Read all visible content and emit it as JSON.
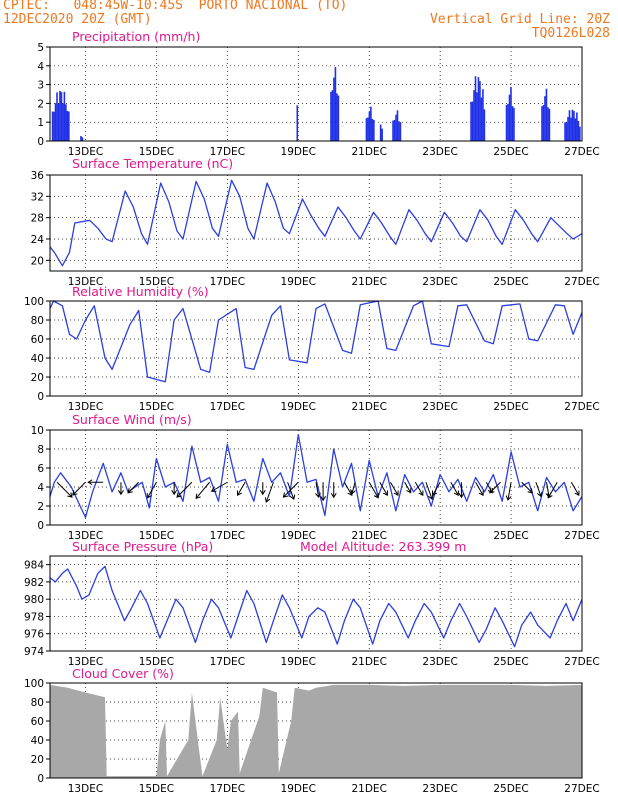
{
  "header": {
    "line1_left": "CPTEC:   048:45W-10:45S  PORTO NACIONAL (TO)",
    "line2_left": "12DEC2020 20Z (GMT)",
    "line2_right": "Vertical Grid Line: 20Z",
    "line3_right": "TQ0126L028"
  },
  "colors": {
    "header": "#f07820",
    "title": "#e0198e",
    "line": "#2a3fe0",
    "bar": "#1f30e6",
    "cloud": "#a8a8a8",
    "arrow": "#000000"
  },
  "chart_data": [
    {
      "type": "bar",
      "title": "Precipitation (mm/h)",
      "xlim": [
        0,
        15
      ],
      "ylim": [
        0,
        5
      ],
      "yticks": [
        0,
        1,
        2,
        3,
        4,
        5
      ],
      "xticks": [
        {
          "day": 1,
          "label": "13DEC"
        },
        {
          "day": 3,
          "label": "15DEC"
        },
        {
          "day": 5,
          "label": "17DEC"
        },
        {
          "day": 7,
          "label": "19DEC"
        },
        {
          "day": 9,
          "label": "21DEC"
        },
        {
          "day": 11,
          "label": "23DEC"
        },
        {
          "day": 13,
          "label": "25DEC"
        },
        {
          "day": 15,
          "label": "27DEC"
        }
      ],
      "bursts": [
        {
          "start": 0.05,
          "end": 0.55,
          "peak": 2.9
        },
        {
          "start": 0.85,
          "end": 0.95,
          "peak": 0.3
        },
        {
          "start": 6.95,
          "end": 7.0,
          "peak": 1.9
        },
        {
          "start": 7.9,
          "end": 8.15,
          "peak": 4.1
        },
        {
          "start": 8.9,
          "end": 9.15,
          "peak": 1.9
        },
        {
          "start": 9.3,
          "end": 9.4,
          "peak": 1.0
        },
        {
          "start": 9.65,
          "end": 9.9,
          "peak": 1.7
        },
        {
          "start": 11.85,
          "end": 12.25,
          "peak": 3.7
        },
        {
          "start": 12.85,
          "end": 13.1,
          "peak": 3.0
        },
        {
          "start": 13.85,
          "end": 14.1,
          "peak": 2.9
        },
        {
          "start": 14.5,
          "end": 14.95,
          "peak": 1.8
        }
      ]
    },
    {
      "type": "line",
      "title": "Surface Temperature (nC)",
      "xlim": [
        0,
        15
      ],
      "ylim": [
        18,
        36
      ],
      "yticks": [
        20,
        24,
        28,
        32,
        36
      ],
      "x": [
        0,
        0.12,
        0.35,
        0.55,
        0.7,
        1.12,
        1.35,
        1.58,
        1.75,
        2.12,
        2.35,
        2.58,
        2.75,
        3.12,
        3.35,
        3.58,
        3.75,
        4.12,
        4.35,
        4.58,
        4.75,
        5.12,
        5.35,
        5.58,
        5.75,
        6.12,
        6.35,
        6.58,
        6.75,
        7.12,
        7.35,
        7.58,
        7.75,
        8.12,
        8.35,
        8.58,
        8.75,
        9.12,
        9.35,
        9.58,
        9.75,
        10.12,
        10.35,
        10.58,
        10.75,
        11.12,
        11.35,
        11.58,
        11.75,
        12.12,
        12.35,
        12.58,
        12.75,
        13.12,
        13.35,
        13.58,
        13.75,
        14.12,
        14.35,
        14.58,
        14.75,
        15
      ],
      "values": [
        22.5,
        21.5,
        19.0,
        21.5,
        27.0,
        27.5,
        26.0,
        24.0,
        23.5,
        33.0,
        30.0,
        25.0,
        23.0,
        34.5,
        31.0,
        25.5,
        24.0,
        34.8,
        31.5,
        26.0,
        24.5,
        35.0,
        32.0,
        26.0,
        24.0,
        34.5,
        31.0,
        26.0,
        25.0,
        31.5,
        28.5,
        26.0,
        24.5,
        30.0,
        28.0,
        25.5,
        24.0,
        29.0,
        27.0,
        24.5,
        23.0,
        29.5,
        27.5,
        25.0,
        23.5,
        29.0,
        27.0,
        24.5,
        23.5,
        29.5,
        27.5,
        24.5,
        23.0,
        29.5,
        27.5,
        25.0,
        23.5,
        28.0,
        26.5,
        25.0,
        24.0,
        25.0
      ]
    },
    {
      "type": "line",
      "title": "Relative Humidity (%)",
      "xlim": [
        0,
        15
      ],
      "ylim": [
        0,
        100
      ],
      "yticks": [
        0,
        20,
        40,
        60,
        80,
        100
      ],
      "x": [
        0,
        0.1,
        0.35,
        0.55,
        0.75,
        1.0,
        1.25,
        1.55,
        1.75,
        2.25,
        2.5,
        2.75,
        3.25,
        3.5,
        3.75,
        4.25,
        4.5,
        4.75,
        5.25,
        5.5,
        5.75,
        6.25,
        6.5,
        6.75,
        7.25,
        7.5,
        7.75,
        8.25,
        8.5,
        8.75,
        9.25,
        9.5,
        9.75,
        10.25,
        10.5,
        10.75,
        11.25,
        11.5,
        11.75,
        12.25,
        12.5,
        12.75,
        13.25,
        13.5,
        13.75,
        14.25,
        14.5,
        14.75,
        15
      ],
      "values": [
        92,
        100,
        95,
        65,
        60,
        80,
        95,
        40,
        28,
        75,
        90,
        20,
        15,
        80,
        92,
        28,
        25,
        80,
        92,
        30,
        28,
        85,
        95,
        38,
        35,
        92,
        97,
        48,
        45,
        96,
        100,
        50,
        48,
        95,
        100,
        55,
        52,
        95,
        96,
        58,
        55,
        95,
        97,
        60,
        58,
        96,
        95,
        65,
        88
      ]
    },
    {
      "type": "line",
      "title": "Surface Wind (m/s)",
      "xlim": [
        0,
        15
      ],
      "ylim": [
        0,
        10
      ],
      "yticks": [
        0,
        2,
        4,
        6,
        8,
        10
      ],
      "x": [
        0,
        0.12,
        0.3,
        0.6,
        0.85,
        1.0,
        1.2,
        1.5,
        1.75,
        2.0,
        2.2,
        2.6,
        2.8,
        3.0,
        3.25,
        3.5,
        3.75,
        4.0,
        4.25,
        4.5,
        4.75,
        5.0,
        5.25,
        5.5,
        5.75,
        6.0,
        6.25,
        6.5,
        6.75,
        7.0,
        7.25,
        7.5,
        7.75,
        8.0,
        8.25,
        8.5,
        8.75,
        9.0,
        9.25,
        9.5,
        9.75,
        10.0,
        10.25,
        10.5,
        10.75,
        11.0,
        11.25,
        11.5,
        11.75,
        12.0,
        12.25,
        12.5,
        12.75,
        13.0,
        13.25,
        13.5,
        13.75,
        14.0,
        14.25,
        14.5,
        14.75,
        15
      ],
      "values": [
        3.0,
        4.5,
        5.5,
        4.0,
        2.0,
        0.8,
        3.5,
        6.5,
        3.5,
        5.5,
        3.5,
        4.5,
        1.8,
        7.0,
        4.0,
        4.5,
        2.5,
        8.3,
        4.5,
        5.0,
        2.5,
        8.5,
        4.5,
        4.8,
        2.5,
        7.0,
        4.5,
        5.5,
        3.0,
        9.5,
        4.5,
        4.8,
        1.0,
        8.0,
        4.0,
        6.5,
        1.5,
        6.8,
        3.0,
        5.5,
        1.5,
        5.3,
        3.5,
        4.5,
        2.0,
        5.3,
        3.5,
        4.8,
        2.5,
        5.0,
        3.5,
        5.3,
        2.5,
        7.7,
        4.0,
        4.5,
        1.5,
        5.0,
        3.5,
        4.5,
        1.5,
        3.0
      ],
      "arrows_note": "wind direction arrows",
      "arrows": [
        [
          0.2,
          135,
          5
        ],
        [
          1.0,
          45,
          4
        ],
        [
          1.5,
          0,
          3
        ],
        [
          2.0,
          90,
          2
        ],
        [
          2.5,
          45,
          3
        ],
        [
          3.0,
          60,
          4
        ],
        [
          3.5,
          90,
          2
        ],
        [
          4.0,
          45,
          5
        ],
        [
          4.5,
          50,
          5
        ],
        [
          5.0,
          30,
          4
        ],
        [
          5.5,
          60,
          3
        ],
        [
          6.0,
          90,
          2
        ],
        [
          6.3,
          70,
          5
        ],
        [
          6.7,
          110,
          4
        ],
        [
          7.0,
          45,
          5
        ],
        [
          7.5,
          100,
          3
        ],
        [
          7.7,
          90,
          4
        ],
        [
          8.0,
          90,
          3
        ],
        [
          8.3,
          120,
          3
        ],
        [
          8.6,
          75,
          2
        ],
        [
          9.0,
          120,
          4
        ],
        [
          9.3,
          120,
          3
        ],
        [
          9.6,
          120,
          3
        ],
        [
          10.0,
          120,
          2
        ],
        [
          10.3,
          120,
          3
        ],
        [
          10.6,
          110,
          4
        ],
        [
          11.0,
          60,
          3
        ],
        [
          11.3,
          120,
          3
        ],
        [
          11.6,
          90,
          3
        ],
        [
          12.0,
          120,
          3
        ],
        [
          12.3,
          120,
          2
        ],
        [
          12.7,
          45,
          3
        ],
        [
          13.0,
          80,
          4
        ],
        [
          13.3,
          135,
          3
        ],
        [
          13.7,
          110,
          3
        ],
        [
          14.0,
          100,
          3
        ],
        [
          14.3,
          60,
          4
        ],
        [
          14.7,
          120,
          3
        ]
      ]
    },
    {
      "type": "line",
      "title": "Surface Pressure (hPa)",
      "annotation": "Model Altitude: 263.399 m",
      "xlim": [
        0,
        15
      ],
      "ylim": [
        974,
        985
      ],
      "yticks": [
        974,
        976,
        978,
        980,
        982,
        984
      ],
      "x": [
        0,
        0.15,
        0.35,
        0.5,
        0.75,
        0.9,
        1.1,
        1.35,
        1.55,
        1.75,
        2.1,
        2.3,
        2.55,
        2.75,
        3.1,
        3.3,
        3.55,
        3.75,
        4.1,
        4.3,
        4.55,
        4.75,
        5.1,
        5.3,
        5.55,
        5.75,
        6.1,
        6.3,
        6.55,
        6.75,
        7.1,
        7.3,
        7.55,
        7.75,
        8.1,
        8.3,
        8.55,
        8.75,
        9.1,
        9.3,
        9.55,
        9.75,
        10.1,
        10.3,
        10.55,
        10.75,
        11.1,
        11.3,
        11.55,
        11.75,
        12.1,
        12.3,
        12.55,
        12.75,
        13.1,
        13.3,
        13.55,
        13.75,
        14.1,
        14.3,
        14.55,
        14.75,
        15
      ],
      "values": [
        982.5,
        982.0,
        983.0,
        983.5,
        981.5,
        980.0,
        980.5,
        983.0,
        983.8,
        981.0,
        977.5,
        979.0,
        981.0,
        979.5,
        975.5,
        977.5,
        980.0,
        979.0,
        975.0,
        977.5,
        980.0,
        979.0,
        975.5,
        978.0,
        981.0,
        979.5,
        975.0,
        977.5,
        980.5,
        979.0,
        975.5,
        978.0,
        979.0,
        978.5,
        974.8,
        977.5,
        980.0,
        979.0,
        974.8,
        977.5,
        979.5,
        978.5,
        975.5,
        977.5,
        979.5,
        978.5,
        975.5,
        977.5,
        979.5,
        978.0,
        975.0,
        976.5,
        979.0,
        977.5,
        974.5,
        977.0,
        978.5,
        977.0,
        975.5,
        977.5,
        979.5,
        977.5,
        980.0
      ]
    },
    {
      "type": "area",
      "title": "Cloud Cover (%)",
      "xlim": [
        0,
        15
      ],
      "ylim": [
        0,
        100
      ],
      "yticks": [
        0,
        20,
        40,
        60,
        80,
        100
      ],
      "x": [
        0,
        0.5,
        1.0,
        1.55,
        1.6,
        3.0,
        3.1,
        3.25,
        3.3,
        3.9,
        4.0,
        4.2,
        4.3,
        4.7,
        4.8,
        5.0,
        5.1,
        5.3,
        5.35,
        5.9,
        6.0,
        6.4,
        6.45,
        6.8,
        6.9,
        7.3,
        7.5,
        8.0,
        9.0,
        10.0,
        11.0,
        12.0,
        13.0,
        14.0,
        15
      ],
      "values": [
        98,
        95,
        90,
        85,
        2,
        2,
        40,
        60,
        2,
        40,
        90,
        30,
        2,
        40,
        85,
        30,
        60,
        70,
        5,
        65,
        95,
        90,
        5,
        60,
        95,
        92,
        95,
        98,
        98,
        97,
        98,
        98,
        98,
        97,
        98
      ]
    }
  ]
}
